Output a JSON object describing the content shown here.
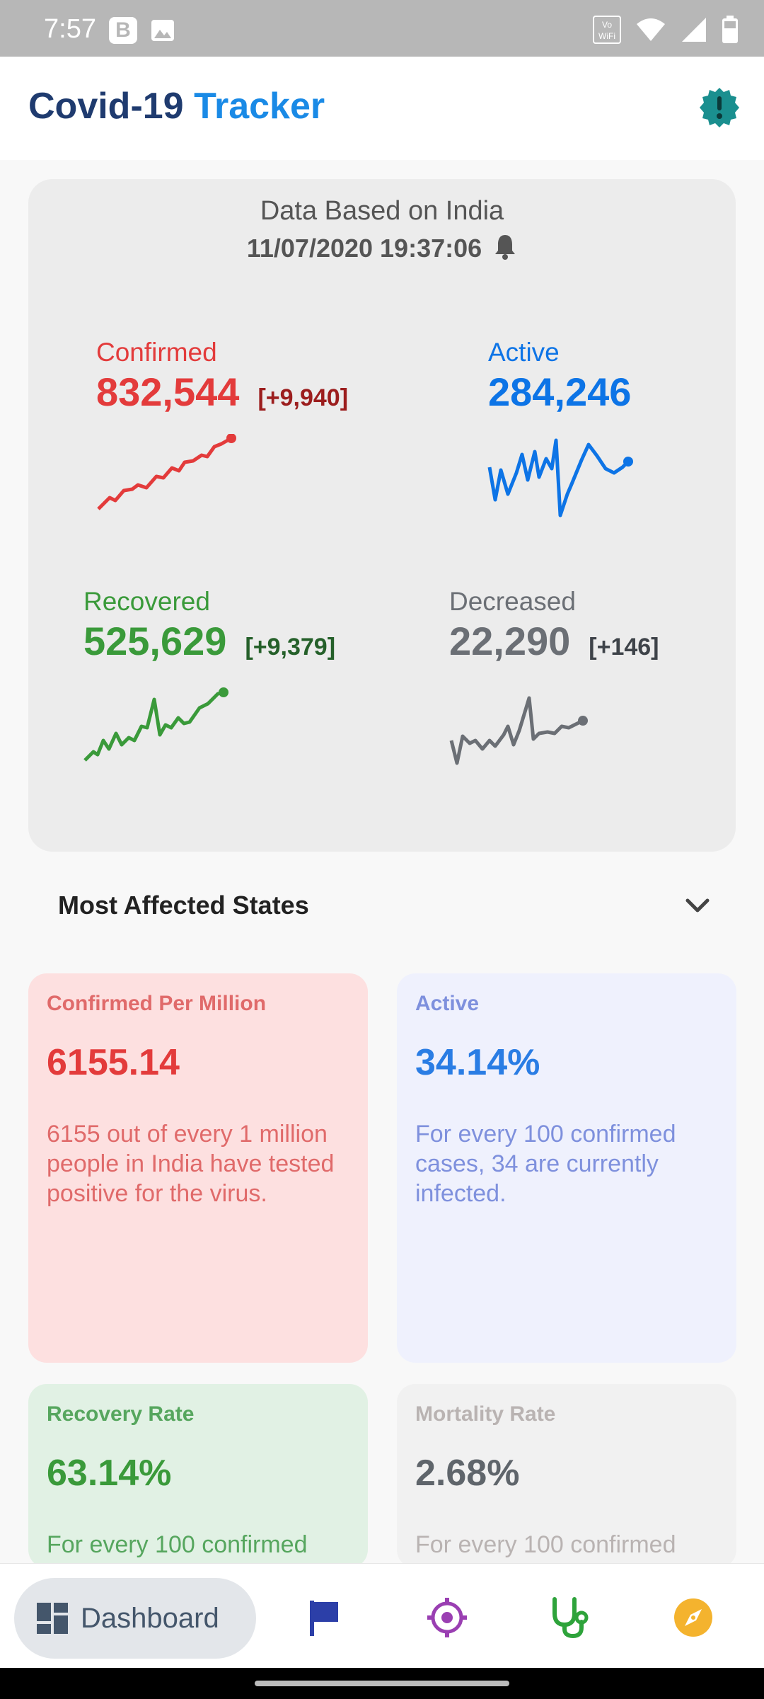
{
  "status_bar": {
    "time": "7:57",
    "b_icon": "B",
    "vowifi": "Vo WiFi",
    "icons": [
      "b-app-icon",
      "image-icon",
      "vowifi-icon",
      "wifi-icon",
      "signal-icon",
      "battery-icon"
    ]
  },
  "header": {
    "title_part1": "Covid-19",
    "title_part2": "Tracker",
    "alert_icon": "alert-badge-icon",
    "colors": {
      "title": "#1f3b6f",
      "accent": "#1a8ae6",
      "badge": "#1a8f8f"
    }
  },
  "summary": {
    "heading": "Data Based on India",
    "timestamp": "11/07/2020 19:37:06",
    "confirmed": {
      "label": "Confirmed",
      "value": "832,544",
      "delta": "[+9,940]",
      "color": "#e33b3b"
    },
    "active": {
      "label": "Active",
      "value": "284,246",
      "delta": "",
      "color": "#0d74e6"
    },
    "recovered": {
      "label": "Recovered",
      "value": "525,629",
      "delta": "[+9,379]",
      "color": "#3a9a3a"
    },
    "deceased": {
      "label": "Decreased",
      "value": "22,290",
      "delta": "[+146]",
      "color": "#6b6f75"
    }
  },
  "most_affected": {
    "label": "Most Affected States"
  },
  "metrics": {
    "confirmed_per_million": {
      "title": "Confirmed Per Million",
      "value": "6155.14",
      "desc": "6155 out of every 1 million people in India have tested positive for the virus."
    },
    "active": {
      "title": "Active",
      "value": "34.14%",
      "desc": "For every 100 confirmed cases, 34 are currently infected."
    },
    "recovery_rate": {
      "title": "Recovery Rate",
      "value": "63.14%",
      "desc": "For every 100 confirmed"
    },
    "mortality_rate": {
      "title": "Mortality Rate",
      "value": "2.68%",
      "desc": "For every 100 confirmed"
    }
  },
  "bottom_nav": {
    "dashboard_label": "Dashboard",
    "items": [
      "dashboard-icon",
      "flag-icon",
      "target-icon",
      "stethoscope-icon",
      "compass-icon"
    ],
    "colors": {
      "flag": "#2c3fa8",
      "target": "#9a3fb2",
      "stethoscope": "#2ea33b",
      "compass": "#f4b32e"
    }
  }
}
